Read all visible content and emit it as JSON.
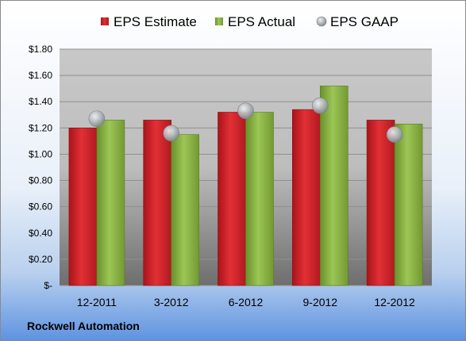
{
  "company": "Rockwell Automation",
  "colors": {
    "estimate": "#d9252b",
    "actual": "#8cb63f",
    "gaap": "#b3b8bd"
  },
  "chart_data": {
    "type": "bar",
    "categories": [
      "12-2011",
      "3-2012",
      "6-2012",
      "9-2012",
      "12-2012"
    ],
    "series": [
      {
        "name": "EPS Estimate",
        "type": "bar",
        "values": [
          1.2,
          1.26,
          1.32,
          1.34,
          1.26
        ]
      },
      {
        "name": "EPS Actual",
        "type": "bar",
        "values": [
          1.26,
          1.15,
          1.32,
          1.52,
          1.23
        ]
      },
      {
        "name": "EPS GAAP",
        "type": "scatter",
        "values": [
          1.27,
          1.16,
          1.33,
          1.37,
          1.15
        ]
      }
    ],
    "y_ticks": [
      {
        "value": 0,
        "label": "$-"
      },
      {
        "value": 0.2,
        "label": "$0.20"
      },
      {
        "value": 0.4,
        "label": "$0.40"
      },
      {
        "value": 0.6,
        "label": "$0.60"
      },
      {
        "value": 0.8,
        "label": "$0.80"
      },
      {
        "value": 1.0,
        "label": "$1.00"
      },
      {
        "value": 1.2,
        "label": "$1.20"
      },
      {
        "value": 1.4,
        "label": "$1.40"
      },
      {
        "value": 1.6,
        "label": "$1.60"
      },
      {
        "value": 1.8,
        "label": "$1.80"
      }
    ],
    "ylim": [
      0,
      1.8
    ],
    "grid": true,
    "legend_position": "top",
    "title": "",
    "xlabel": "",
    "ylabel": ""
  }
}
